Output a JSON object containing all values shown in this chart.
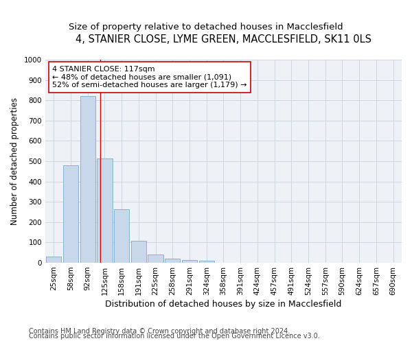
{
  "title1": "4, STANIER CLOSE, LYME GREEN, MACCLESFIELD, SK11 0LS",
  "title2": "Size of property relative to detached houses in Macclesfield",
  "xlabel": "Distribution of detached houses by size in Macclesfield",
  "ylabel": "Number of detached properties",
  "footnote1": "Contains HM Land Registry data © Crown copyright and database right 2024.",
  "footnote2": "Contains public sector information licensed under the Open Government Licence v3.0.",
  "bar_labels": [
    "25sqm",
    "58sqm",
    "92sqm",
    "125sqm",
    "158sqm",
    "191sqm",
    "225sqm",
    "258sqm",
    "291sqm",
    "324sqm",
    "358sqm",
    "391sqm",
    "424sqm",
    "457sqm",
    "491sqm",
    "524sqm",
    "557sqm",
    "590sqm",
    "624sqm",
    "657sqm",
    "690sqm"
  ],
  "bar_values": [
    30,
    480,
    820,
    515,
    265,
    110,
    40,
    20,
    15,
    10,
    0,
    0,
    0,
    0,
    0,
    0,
    0,
    0,
    0,
    0,
    0
  ],
  "bar_color": "#c8d8ea",
  "bar_edge_color": "#7aaac8",
  "ylim": [
    0,
    1000
  ],
  "yticks": [
    0,
    100,
    200,
    300,
    400,
    500,
    600,
    700,
    800,
    900,
    1000
  ],
  "vline_x": 2.75,
  "vline_color": "#cc0000",
  "annotation_title": "4 STANIER CLOSE: 117sqm",
  "annotation_line1": "← 48% of detached houses are smaller (1,091)",
  "annotation_line2": "52% of semi-detached houses are larger (1,179) →",
  "title1_fontsize": 10.5,
  "title2_fontsize": 9.5,
  "annotation_fontsize": 8,
  "xlabel_fontsize": 9,
  "ylabel_fontsize": 8.5,
  "tick_fontsize": 7.5,
  "footnote_fontsize": 7,
  "grid_color": "#c8d4de",
  "background_color": "#eef2f7"
}
